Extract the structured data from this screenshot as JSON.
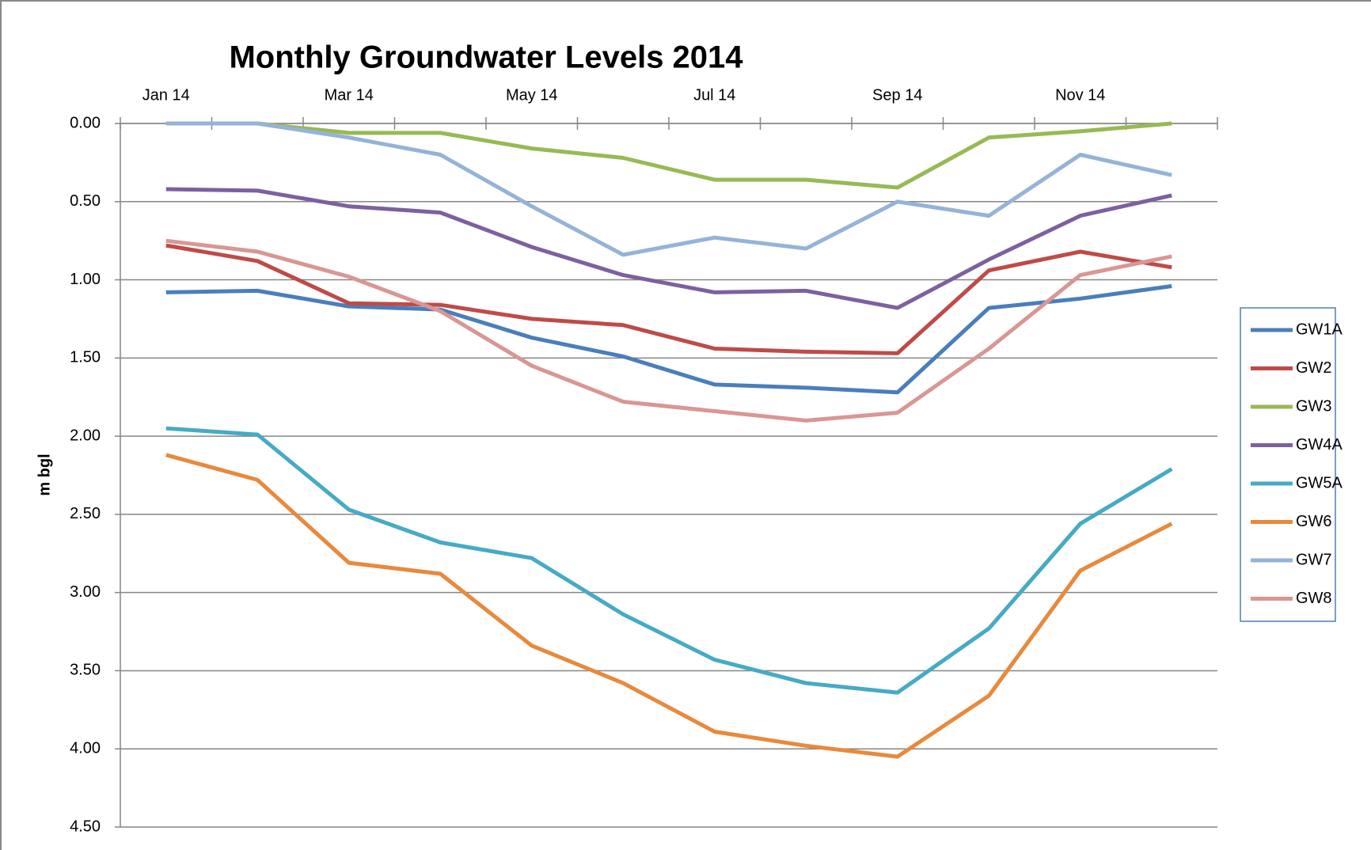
{
  "chart_data": {
    "type": "line",
    "title": "Monthly Groundwater Levels 2014",
    "y_label": "m bgl",
    "categories": [
      "Jan 14",
      null,
      "Mar 14",
      null,
      "May 14",
      null,
      "Jul 14",
      null,
      "Sep 14",
      null,
      "Nov 14",
      null
    ],
    "ylim": [
      0,
      4.5
    ],
    "invert_y": true,
    "grid": true,
    "legend_position": "right",
    "x_axis_position": "top",
    "yticks": [
      {
        "value": 0,
        "label": "0.00"
      },
      {
        "value": 0.5,
        "label": "0.50"
      },
      {
        "value": 1,
        "label": "1.00"
      },
      {
        "value": 1.5,
        "label": "1.50"
      },
      {
        "value": 2,
        "label": "2.00"
      },
      {
        "value": 2.5,
        "label": "2.50"
      },
      {
        "value": 3,
        "label": "3.00"
      },
      {
        "value": 3.5,
        "label": "3.50"
      },
      {
        "value": 4,
        "label": "4.00"
      },
      {
        "value": 4.5,
        "label": "4.50"
      }
    ],
    "series": [
      {
        "name": "GW1A",
        "color": "#4a7ebb",
        "values": [
          1.08,
          1.07,
          1.17,
          1.19,
          1.37,
          1.49,
          1.67,
          1.69,
          1.72,
          1.18,
          1.12,
          1.04
        ]
      },
      {
        "name": "GW2",
        "color": "#be4b48",
        "values": [
          0.78,
          0.88,
          1.15,
          1.16,
          1.25,
          1.29,
          1.44,
          1.46,
          1.47,
          0.94,
          0.82,
          0.92
        ]
      },
      {
        "name": "GW3",
        "color": "#98b954",
        "values": [
          0.0,
          0.0,
          0.06,
          0.06,
          0.16,
          0.22,
          0.36,
          0.36,
          0.41,
          0.09,
          0.05,
          0.0
        ]
      },
      {
        "name": "GW4A",
        "color": "#7d60a0",
        "values": [
          0.42,
          0.43,
          0.53,
          0.57,
          0.79,
          0.97,
          1.08,
          1.07,
          1.18,
          0.87,
          0.59,
          0.46
        ]
      },
      {
        "name": "GW5A",
        "color": "#46aac5",
        "values": [
          1.95,
          1.99,
          2.47,
          2.68,
          2.78,
          3.14,
          3.43,
          3.58,
          3.64,
          3.23,
          2.56,
          2.21
        ]
      },
      {
        "name": "GW6",
        "color": "#e8893c",
        "values": [
          2.12,
          2.28,
          2.81,
          2.88,
          3.34,
          3.58,
          3.89,
          3.98,
          4.05,
          3.66,
          2.86,
          2.56
        ]
      },
      {
        "name": "GW7",
        "color": "#95b3d7",
        "values": [
          0.0,
          0.0,
          0.09,
          0.2,
          0.53,
          0.84,
          0.73,
          0.8,
          0.5,
          0.59,
          0.2,
          0.33
        ]
      },
      {
        "name": "GW8",
        "color": "#d99694",
        "values": [
          0.75,
          0.82,
          0.98,
          1.2,
          1.55,
          1.78,
          1.84,
          1.9,
          1.85,
          1.44,
          0.97,
          0.85
        ]
      }
    ]
  }
}
